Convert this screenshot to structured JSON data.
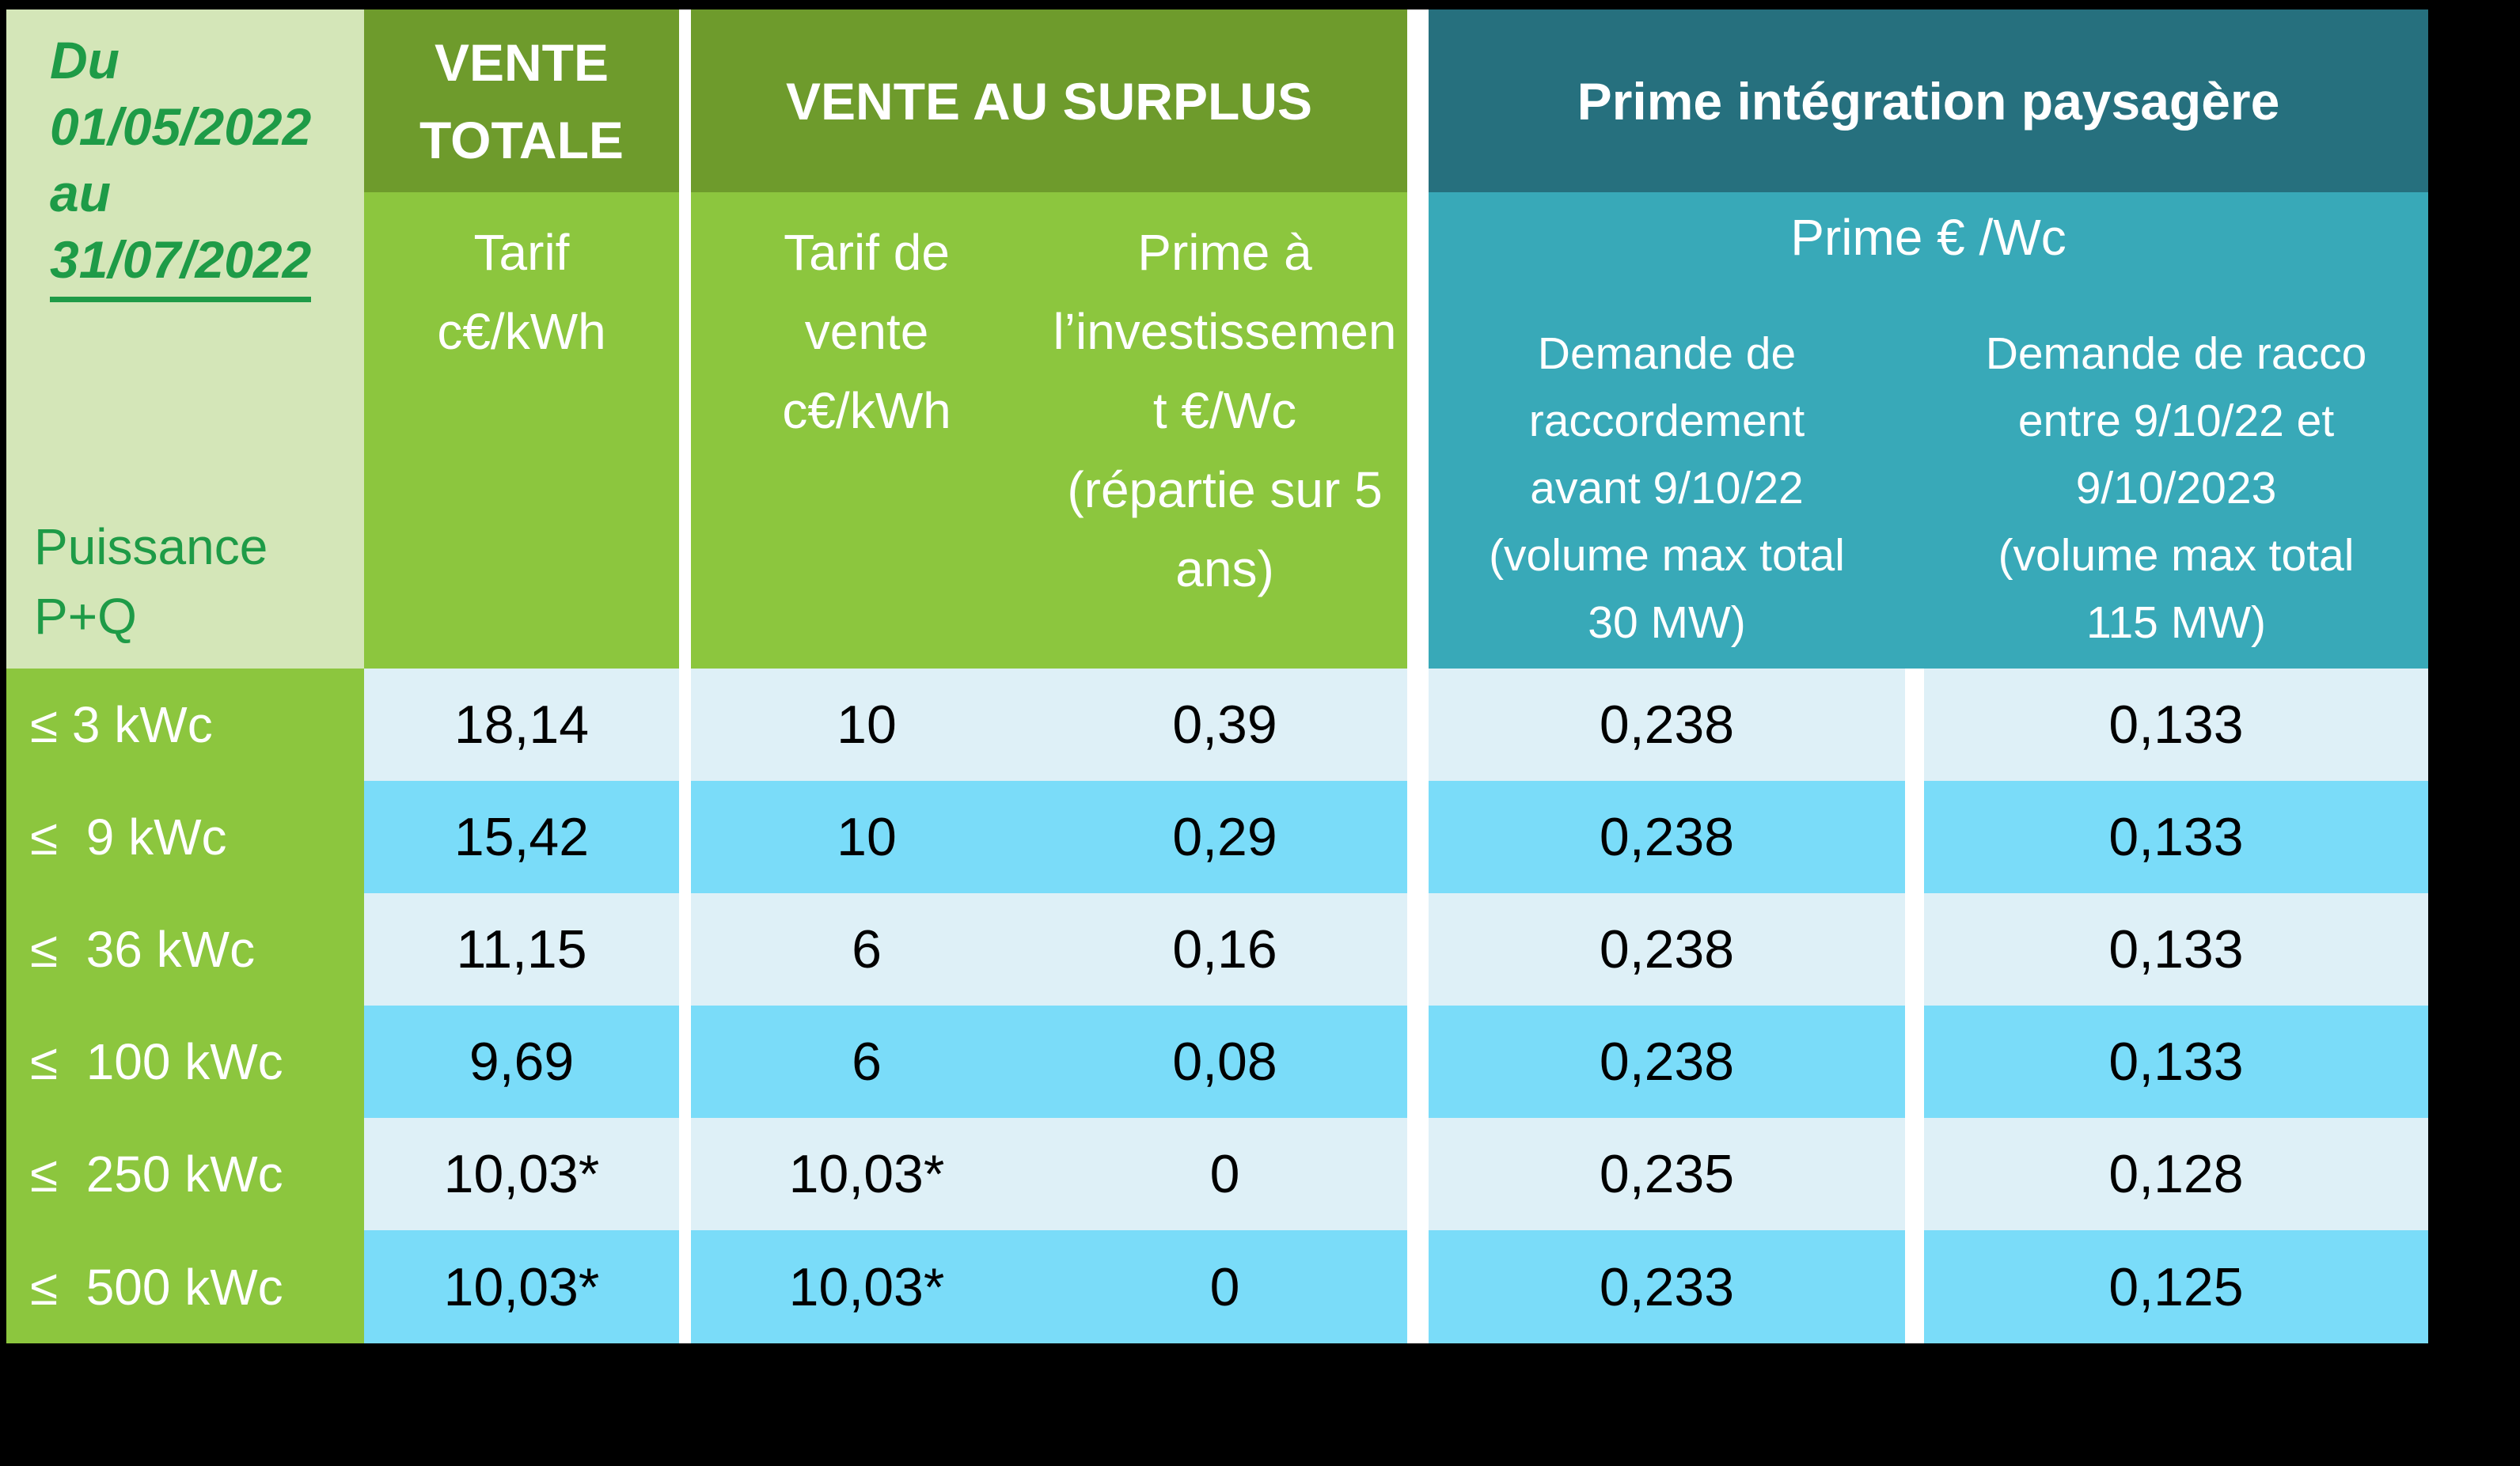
{
  "colors": {
    "background": "#000000",
    "table_white": "#ffffff",
    "light_green": "#d4e6b8",
    "green": "#8cc63e",
    "dark_green": "#6e9b2c",
    "dark_teal": "#26707e",
    "teal": "#38a9b8",
    "bright_blue": "#7adcf9",
    "pale_blue": "#def0f7",
    "text_green": "#1e9b47",
    "text_dark": "#000000",
    "text_white": "#ffffff"
  },
  "period": {
    "lines_plain": "Du\n01/05/2022\nau",
    "line_underlined": "31/07/2022"
  },
  "power_label": "Puissance\nP+Q",
  "headers": {
    "vente_totale": "VENTE\nTOTALE",
    "vente_surplus": "VENTE AU SURPLUS",
    "prime_paysagere": "Prime intégration paysagère",
    "tarif_sub": "Tarif\nc€/kWh",
    "tarif_vente_sub": "Tarif de\nvente\nc€/kWh",
    "prime_invest_sub": "Prime à\nl’investissemen\nt €/Wc\n(répartie sur 5\nans)",
    "prime_wc_sub": "Prime € /Wc",
    "demande_avant": "Demande de\nraccordement\navant 9/10/22\n(volume max total\n30 MW)",
    "demande_entre": "Demande de racco\nentre 9/10/22 et\n9/10/2023\n(volume max total\n115 MW)"
  },
  "rows": [
    {
      "label": "≤ 3 kWc",
      "vente_totale": "18,14",
      "tarif_vente": "10",
      "prime_invest": "0,39",
      "prime_avant": "0,238",
      "prime_entre": "0,133"
    },
    {
      "label": "≤  9 kWc",
      "vente_totale": "15,42",
      "tarif_vente": "10",
      "prime_invest": "0,29",
      "prime_avant": "0,238",
      "prime_entre": "0,133"
    },
    {
      "label": "≤  36 kWc",
      "vente_totale": "11,15",
      "tarif_vente": "6",
      "prime_invest": "0,16",
      "prime_avant": "0,238",
      "prime_entre": "0,133"
    },
    {
      "label": "≤  100 kWc",
      "vente_totale": "9,69",
      "tarif_vente": "6",
      "prime_invest": "0,08",
      "prime_avant": "0,238",
      "prime_entre": "0,133"
    },
    {
      "label": "≤  250 kWc",
      "vente_totale": "10,03*",
      "tarif_vente": "10,03*",
      "prime_invest": "0",
      "prime_avant": "0,235",
      "prime_entre": "0,128"
    },
    {
      "label": "≤  500 kWc",
      "vente_totale": "10,03*",
      "tarif_vente": "10,03*",
      "prime_invest": "0",
      "prime_avant": "0,233",
      "prime_entre": "0,125"
    }
  ]
}
